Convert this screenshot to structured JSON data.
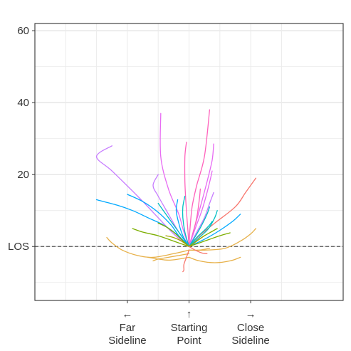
{
  "chart_data": {
    "type": "line",
    "title": "",
    "xlabel": "",
    "ylabel": "",
    "xlim": [
      -30,
      30
    ],
    "ylim": [
      -15,
      62
    ],
    "grid": true,
    "legend": "none",
    "y_ticks": [
      {
        "value": 60,
        "label": "60"
      },
      {
        "value": 40,
        "label": "40"
      },
      {
        "value": 20,
        "label": "20"
      },
      {
        "value": 0,
        "label": "LOS"
      }
    ],
    "y_minor_gridlines": [
      -10,
      10,
      30,
      50
    ],
    "x_gridlines": [
      -24,
      -18,
      -12,
      -6,
      0,
      6,
      12,
      18
    ],
    "x_labels": [
      {
        "value": -12,
        "arrow": "←",
        "lines": [
          "Far",
          "Sideline"
        ]
      },
      {
        "value": 0,
        "arrow": "↑",
        "lines": [
          "Starting",
          "Point"
        ]
      },
      {
        "value": 12,
        "arrow": "→",
        "lines": [
          "Close",
          "Sideline"
        ]
      }
    ],
    "reference_line": {
      "y": 0,
      "style": "dashed",
      "color": "#555555"
    },
    "series": [
      {
        "color": "#c77cff",
        "points": [
          [
            0,
            0
          ],
          [
            -3,
            3.5
          ],
          [
            -6,
            8
          ],
          [
            -10,
            14
          ],
          [
            -15,
            21
          ],
          [
            -18,
            25
          ],
          [
            -15,
            28
          ]
        ]
      },
      {
        "color": "#c77cff",
        "points": [
          [
            0,
            0
          ],
          [
            -2,
            4
          ],
          [
            -4,
            9
          ],
          [
            -6,
            14
          ],
          [
            -7,
            17
          ],
          [
            -6,
            20
          ]
        ]
      },
      {
        "color": "#e76bf3",
        "points": [
          [
            0,
            0
          ],
          [
            -1,
            4
          ],
          [
            -2,
            9
          ],
          [
            -4,
            16
          ],
          [
            -5.5,
            25
          ],
          [
            -5.5,
            37
          ]
        ]
      },
      {
        "color": "#ff62bc",
        "points": [
          [
            0,
            0
          ],
          [
            0.2,
            5
          ],
          [
            0.6,
            11
          ],
          [
            1.5,
            17
          ],
          [
            3,
            25
          ],
          [
            4,
            38
          ]
        ]
      },
      {
        "color": "#ff62bc",
        "points": [
          [
            0,
            0
          ],
          [
            -0.3,
            6
          ],
          [
            -0.6,
            12
          ],
          [
            -0.8,
            18
          ],
          [
            -0.8,
            25
          ],
          [
            -0.5,
            29
          ]
        ]
      },
      {
        "color": "#e76bf3",
        "points": [
          [
            0,
            0
          ],
          [
            1,
            5
          ],
          [
            2.2,
            11
          ],
          [
            3.5,
            18
          ],
          [
            4.5,
            24
          ],
          [
            4.8,
            28.5
          ]
        ]
      },
      {
        "color": "#ff62bc",
        "points": [
          [
            0,
            0
          ],
          [
            0.8,
            4
          ],
          [
            1.5,
            8
          ],
          [
            2,
            13
          ],
          [
            2.2,
            16
          ]
        ]
      },
      {
        "color": "#e76bf3",
        "points": [
          [
            0,
            0
          ],
          [
            1.2,
            5
          ],
          [
            2.5,
            10
          ],
          [
            3.5,
            15
          ],
          [
            4.2,
            19
          ],
          [
            4.5,
            21
          ]
        ]
      },
      {
        "color": "#c77cff",
        "points": [
          [
            0,
            0
          ],
          [
            1.5,
            4
          ],
          [
            3,
            8
          ],
          [
            4,
            12
          ],
          [
            4.8,
            15
          ]
        ]
      },
      {
        "color": "#f8766d",
        "points": [
          [
            0,
            0
          ],
          [
            2,
            3
          ],
          [
            5,
            6.5
          ],
          [
            9,
            11
          ],
          [
            11,
            15
          ],
          [
            13,
            19
          ]
        ]
      },
      {
        "color": "#00a9ff",
        "points": [
          [
            0,
            0
          ],
          [
            -2.5,
            3.5
          ],
          [
            -5,
            6
          ],
          [
            -8,
            8
          ],
          [
            -11,
            10
          ],
          [
            -14,
            11.5
          ],
          [
            -18,
            13
          ]
        ]
      },
      {
        "color": "#00a9ff",
        "points": [
          [
            0,
            0
          ],
          [
            -2,
            3
          ],
          [
            -3.5,
            6
          ],
          [
            -6,
            9.5
          ],
          [
            -9,
            12.5
          ],
          [
            -12,
            14.5
          ]
        ]
      },
      {
        "color": "#00bfc4",
        "points": [
          [
            0,
            0
          ],
          [
            -1.5,
            3
          ],
          [
            -3,
            6
          ],
          [
            -4.5,
            9
          ],
          [
            -6,
            12
          ]
        ]
      },
      {
        "color": "#00a9ff",
        "points": [
          [
            0,
            0
          ],
          [
            -1.2,
            3
          ],
          [
            -2,
            6.5
          ],
          [
            -2.5,
            10
          ],
          [
            -2.2,
            13
          ]
        ]
      },
      {
        "color": "#00bfc4",
        "points": [
          [
            0,
            0
          ],
          [
            -0.8,
            4
          ],
          [
            -1.2,
            8
          ],
          [
            -1.2,
            11
          ],
          [
            -0.8,
            14
          ]
        ]
      },
      {
        "color": "#00bfc4",
        "points": [
          [
            0,
            0
          ],
          [
            1.5,
            2.5
          ],
          [
            3,
            4.5
          ],
          [
            4,
            6
          ],
          [
            4.5,
            7
          ]
        ]
      },
      {
        "color": "#00a9ff",
        "points": [
          [
            0,
            0
          ],
          [
            3,
            2
          ],
          [
            6,
            4.5
          ],
          [
            8.5,
            7
          ],
          [
            10,
            9
          ]
        ]
      },
      {
        "color": "#00bfc4",
        "points": [
          [
            0,
            0
          ],
          [
            1.3,
            3
          ],
          [
            2.5,
            6
          ],
          [
            3.5,
            9
          ],
          [
            4,
            11
          ]
        ]
      },
      {
        "color": "#00bfc4",
        "points": [
          [
            0,
            0
          ],
          [
            2,
            2.5
          ],
          [
            3.8,
            5
          ],
          [
            5,
            8
          ],
          [
            5.5,
            10
          ]
        ]
      },
      {
        "color": "#7cae00",
        "points": [
          [
            0,
            0
          ],
          [
            -3,
            1.5
          ],
          [
            -6,
            3
          ],
          [
            -9,
            4
          ],
          [
            -11,
            5
          ]
        ]
      },
      {
        "color": "#7cae00",
        "points": [
          [
            0,
            0
          ],
          [
            -1.5,
            2
          ],
          [
            -3,
            4
          ],
          [
            -4.5,
            5.5
          ],
          [
            -6,
            6.5
          ]
        ]
      },
      {
        "color": "#7cae00",
        "points": [
          [
            0,
            0
          ],
          [
            2,
            1
          ],
          [
            4,
            2
          ],
          [
            6,
            3
          ],
          [
            8,
            3.8
          ]
        ]
      },
      {
        "color": "#7cae00",
        "points": [
          [
            0,
            0
          ],
          [
            1.5,
            1.5
          ],
          [
            3,
            3
          ],
          [
            4.5,
            4.2
          ],
          [
            5.5,
            5
          ]
        ]
      },
      {
        "color": "#a3a500",
        "points": [
          [
            0,
            0
          ],
          [
            -1.5,
            1.5
          ],
          [
            -3,
            2.5
          ],
          [
            -4.5,
            3
          ]
        ]
      },
      {
        "color": "#a3a500",
        "points": [
          [
            0,
            0
          ],
          [
            1,
            1
          ],
          [
            2,
            2
          ],
          [
            3,
            3
          ]
        ]
      },
      {
        "color": "#e7b14a",
        "points": [
          [
            0,
            -1
          ],
          [
            -3,
            -2
          ],
          [
            -7,
            -3
          ],
          [
            -10,
            -2.5
          ],
          [
            -13,
            -1
          ],
          [
            -15,
            1
          ],
          [
            -16,
            2.5
          ]
        ]
      },
      {
        "color": "#e7b14a",
        "points": [
          [
            0,
            -1
          ],
          [
            3,
            -1
          ],
          [
            7,
            -0.5
          ],
          [
            10,
            1.5
          ],
          [
            12,
            3.5
          ],
          [
            13,
            5
          ]
        ]
      },
      {
        "color": "#e7b14a",
        "points": [
          [
            0,
            -3
          ],
          [
            -2,
            -3.5
          ],
          [
            -4,
            -3.8
          ],
          [
            -6,
            -3.5
          ],
          [
            -8,
            -3
          ]
        ]
      },
      {
        "color": "#e7b14a",
        "points": [
          [
            0,
            -3
          ],
          [
            2,
            -4
          ],
          [
            5,
            -4.5
          ],
          [
            8,
            -4
          ],
          [
            10,
            -3
          ]
        ]
      },
      {
        "color": "#e7b14a",
        "points": [
          [
            0,
            -2
          ],
          [
            -2,
            -2.5
          ],
          [
            -4,
            -3
          ],
          [
            -6,
            -3.5
          ],
          [
            -7,
            -4
          ]
        ]
      },
      {
        "color": "#e7b14a",
        "points": [
          [
            0,
            -1
          ],
          [
            2,
            -1
          ],
          [
            4,
            -0.5
          ]
        ]
      },
      {
        "color": "#f8766d",
        "points": [
          [
            0,
            -1
          ],
          [
            -0.5,
            -3
          ],
          [
            -1,
            -5
          ],
          [
            -1,
            -6.5
          ],
          [
            -1.2,
            -7
          ]
        ]
      },
      {
        "color": "#f8766d",
        "points": [
          [
            0,
            0
          ],
          [
            1.2,
            -1
          ],
          [
            2.5,
            -1.8
          ],
          [
            3.5,
            -2
          ]
        ]
      }
    ]
  }
}
